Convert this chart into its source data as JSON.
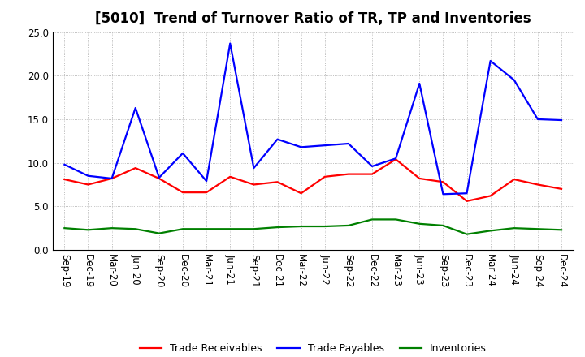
{
  "title": "[5010]  Trend of Turnover Ratio of TR, TP and Inventories",
  "x_labels": [
    "Sep-19",
    "Dec-19",
    "Mar-20",
    "Jun-20",
    "Sep-20",
    "Dec-20",
    "Mar-21",
    "Jun-21",
    "Sep-21",
    "Dec-21",
    "Mar-22",
    "Jun-22",
    "Sep-22",
    "Dec-22",
    "Mar-23",
    "Jun-23",
    "Sep-23",
    "Dec-23",
    "Mar-24",
    "Jun-24",
    "Sep-24",
    "Dec-24"
  ],
  "trade_receivables": [
    8.1,
    7.5,
    8.2,
    9.4,
    8.2,
    6.6,
    6.6,
    8.4,
    7.5,
    7.8,
    6.5,
    8.4,
    8.7,
    8.7,
    10.4,
    8.2,
    7.8,
    5.6,
    6.2,
    8.1,
    7.5,
    7.0
  ],
  "trade_payables": [
    9.8,
    8.5,
    8.2,
    16.3,
    8.3,
    11.1,
    7.9,
    23.7,
    9.4,
    12.7,
    11.8,
    12.0,
    12.2,
    9.6,
    10.5,
    19.1,
    6.4,
    6.5,
    21.7,
    19.5,
    15.0,
    14.9
  ],
  "inventories": [
    2.5,
    2.3,
    2.5,
    2.4,
    1.9,
    2.4,
    2.4,
    2.4,
    2.4,
    2.6,
    2.7,
    2.7,
    2.8,
    3.5,
    3.5,
    3.0,
    2.8,
    1.8,
    2.2,
    2.5,
    2.4,
    2.3
  ],
  "line_colors": {
    "trade_receivables": "#ff0000",
    "trade_payables": "#0000ff",
    "inventories": "#008000"
  },
  "legend_labels": [
    "Trade Receivables",
    "Trade Payables",
    "Inventories"
  ],
  "ylim": [
    0.0,
    25.0
  ],
  "yticks": [
    0.0,
    5.0,
    10.0,
    15.0,
    20.0,
    25.0
  ],
  "background_color": "#ffffff",
  "grid_color": "#aaaaaa",
  "title_fontsize": 12,
  "legend_fontsize": 9,
  "tick_fontsize": 8.5
}
